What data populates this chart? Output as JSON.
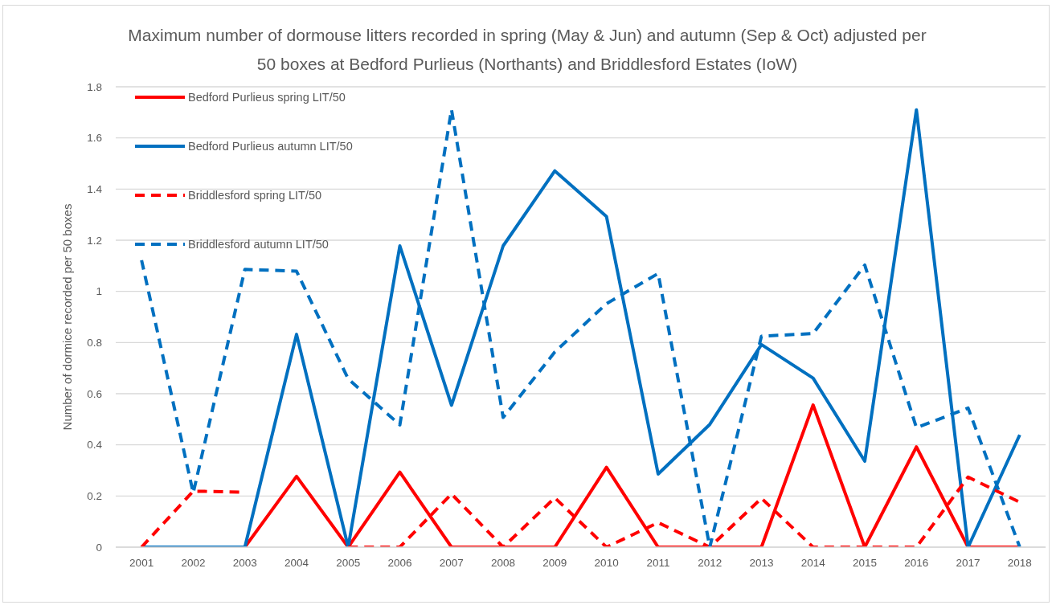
{
  "chart_data": {
    "type": "line",
    "title": "Maximum number of dormouse litters recorded in spring (May & Jun) and autumn (Sep & Oct) adjusted per 50 boxes at Bedford Purlieus (Northants) and Briddlesford Estates (IoW)",
    "ylabel": "Number of dormice recorded per 50 boxes",
    "categories": [
      "2001",
      "2002",
      "2003",
      "2004",
      "2005",
      "2006",
      "2007",
      "2008",
      "2009",
      "2010",
      "2011",
      "2012",
      "2013",
      "2014",
      "2015",
      "2016",
      "2017",
      "2018"
    ],
    "series": [
      {
        "name": "Bedford Purlieus spring LIT/50",
        "color": "#ff0000",
        "line_style": "solid",
        "values": [
          0,
          0,
          0,
          0.277,
          0,
          0.293,
          0,
          0,
          0,
          0.312,
          0,
          0,
          0,
          0.556,
          0,
          0.392,
          0,
          0
        ]
      },
      {
        "name": "Bedford Purlieus autumn LIT/50",
        "color": "#0070c0",
        "line_style": "solid",
        "values": [
          0,
          0,
          0,
          0.832,
          0,
          1.178,
          0.555,
          1.178,
          1.471,
          1.293,
          0.286,
          0.48,
          0.792,
          0.661,
          0.336,
          1.71,
          0,
          0.439
        ]
      },
      {
        "name": "Briddlesford spring LIT/50",
        "color": "#ff0000",
        "line_style": "dashed",
        "values": [
          0,
          0.219,
          0.215,
          null,
          0,
          0,
          0.208,
          0,
          0.193,
          0,
          0.096,
          0,
          0.191,
          0,
          0,
          0,
          0.274,
          0.176
        ]
      },
      {
        "name": "Briddlesford autumn LIT/50",
        "color": "#0070c0",
        "line_style": "dashed",
        "values": [
          1.122,
          0.212,
          1.086,
          1.079,
          0.658,
          0.478,
          1.711,
          0.507,
          0.763,
          0.952,
          1.07,
          0,
          0.825,
          0.835,
          1.103,
          0.467,
          0.544,
          0
        ]
      }
    ],
    "ylim": [
      0,
      1.8
    ],
    "yticks": [
      0,
      0.2,
      0.4,
      0.6,
      0.8,
      1,
      1.2,
      1.4,
      1.6,
      1.8
    ],
    "grid": "y",
    "legend": "top left"
  }
}
